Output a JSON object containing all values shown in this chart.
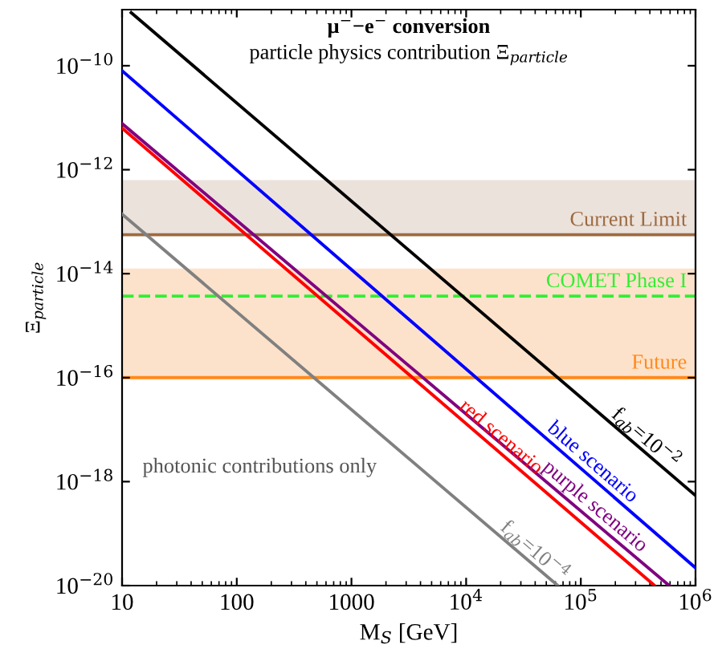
{
  "chart_data": {
    "type": "line",
    "title": "μ$^{−}$−e$^{−}$ conversion",
    "subtitle": "particle physics contribution Ξ$_{particle}$",
    "xlabel": "M$_{S}$ [GeV]",
    "ylabel": "Ξ$_{particle}$",
    "log": "xy",
    "grid": false,
    "legend": false,
    "xlim": [
      10,
      1000000
    ],
    "ylim": [
      1e-20,
      1.2e-09
    ],
    "xticks": [
      10,
      100,
      1000,
      {
        "value": 10000,
        "label": "10$^{4}$"
      },
      {
        "value": 100000,
        "label": "10$^{5}$"
      },
      {
        "value": 1000000,
        "label": "10$^{6}$"
      }
    ],
    "yticks": [
      {
        "value": 1e-20,
        "label": "10$^{−20}$"
      },
      {
        "value": 1e-18,
        "label": "10$^{−18}$"
      },
      {
        "value": 1e-16,
        "label": "10$^{−16}$"
      },
      {
        "value": 1e-14,
        "label": "10$^{−14}$"
      },
      {
        "value": 1e-12,
        "label": "10$^{−12}$"
      },
      {
        "value": 1e-10,
        "label": "10$^{−10}$"
      }
    ],
    "bands": [
      {
        "axis": "y",
        "from": 5.6e-14,
        "to": 6.3e-13,
        "color": "#ece2dc"
      },
      {
        "axis": "y",
        "from": 1e-16,
        "to": 1.26e-14,
        "color": "#fde2cb"
      }
    ],
    "ref_lines": [
      {
        "axis": "y",
        "value": 5.6e-14,
        "label": "Current Limit",
        "color": "#9c6a40",
        "line_style": "solid"
      },
      {
        "axis": "y",
        "value": 3.7e-15,
        "label": "COMET Phase I",
        "color": "#33ee33",
        "line_style": "dashed"
      },
      {
        "axis": "y",
        "value": 1e-16,
        "label": "Future",
        "color": "#ff8a1a",
        "line_style": "solid"
      }
    ],
    "series": [
      {
        "name": "f$_{ab}$=10$^{−2}$",
        "color": "#000000",
        "x": [
          12,
          1000000
        ],
        "values": [
          1.05e-09,
          5.4e-19
        ]
      },
      {
        "name": "blue scenario",
        "color": "#0000ff",
        "x": [
          10,
          1000000
        ],
        "values": [
          8e-11,
          2.2e-20
        ]
      },
      {
        "name": "purple scenario",
        "color": "#800080",
        "x": [
          10,
          590000
        ],
        "values": [
          7.7e-12,
          1e-20
        ]
      },
      {
        "name": "red scenario",
        "color": "#ff0000",
        "x": [
          10,
          440000
        ],
        "values": [
          6.3e-12,
          1e-20
        ]
      },
      {
        "name": "f$_{ab}$=10$^{−4}$",
        "color": "#808080",
        "x": [
          10,
          63000
        ],
        "values": [
          1.4e-13,
          1e-20
        ]
      }
    ],
    "annotations": [
      "photonic contributions only"
    ]
  }
}
